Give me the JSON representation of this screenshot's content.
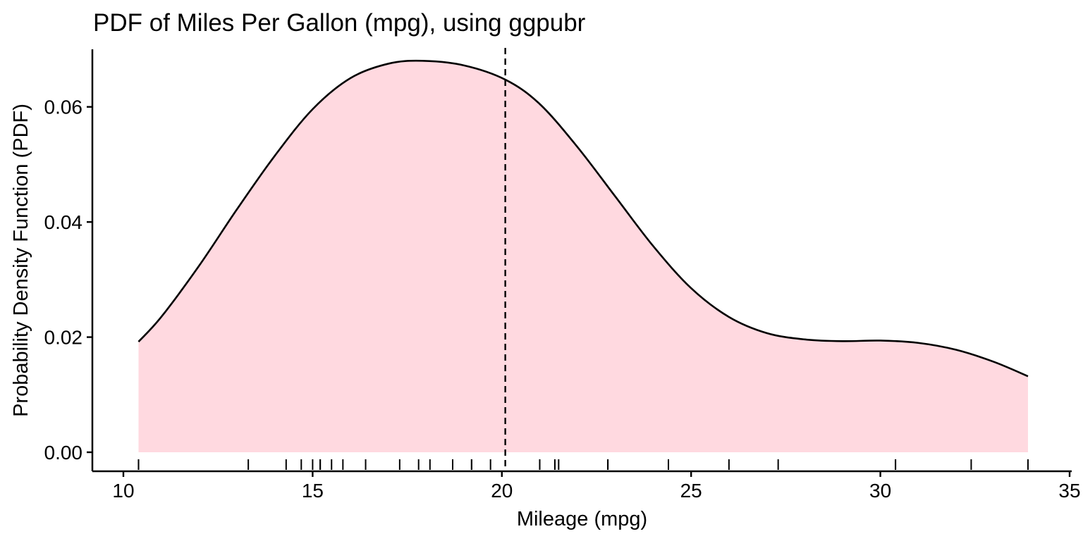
{
  "chart_data": {
    "type": "area",
    "title": "PDF of Miles Per Gallon (mpg), using ggpubr",
    "xlabel": "Mileage (mpg)",
    "ylabel": "Probability Density Function (PDF)",
    "xlim": [
      10,
      35
    ],
    "ylim": [
      0,
      0.07
    ],
    "x_ticks": [
      10,
      15,
      20,
      25,
      30,
      35
    ],
    "x_tick_labels": [
      "10",
      "15",
      "20",
      "25",
      "30",
      "35"
    ],
    "y_ticks": [
      0.0,
      0.02,
      0.04,
      0.06
    ],
    "y_tick_labels": [
      "0.00",
      "0.02",
      "0.04",
      "0.06"
    ],
    "grid": false,
    "legend": "none",
    "fill_color": "#FFD9E0",
    "line_color": "#000000",
    "series": [
      {
        "x": [
          10.4,
          11.0,
          12.0,
          13.0,
          14.0,
          15.0,
          16.0,
          17.0,
          17.9,
          19.0,
          20.1,
          21.0,
          22.0,
          23.0,
          24.0,
          25.0,
          26.0,
          27.0,
          28.0,
          29.0,
          30.0,
          31.0,
          32.0,
          33.0,
          33.9
        ],
        "y": [
          0.0192,
          0.0235,
          0.0324,
          0.0422,
          0.0515,
          0.0596,
          0.065,
          0.0675,
          0.068,
          0.0672,
          0.0647,
          0.0605,
          0.053,
          0.0444,
          0.0358,
          0.0285,
          0.0235,
          0.0207,
          0.0196,
          0.0193,
          0.0194,
          0.019,
          0.0178,
          0.0157,
          0.0132
        ]
      }
    ],
    "mean_line": {
      "x": 20.09,
      "style": "dashed"
    },
    "rug": [
      10.4,
      10.4,
      13.3,
      14.3,
      14.7,
      15.0,
      15.2,
      15.2,
      15.5,
      15.8,
      16.4,
      17.3,
      17.8,
      18.1,
      18.7,
      19.2,
      19.2,
      19.7,
      21.0,
      21.0,
      21.4,
      21.4,
      21.5,
      22.8,
      22.8,
      24.4,
      26.0,
      27.3,
      30.4,
      30.4,
      32.4,
      33.9
    ]
  }
}
